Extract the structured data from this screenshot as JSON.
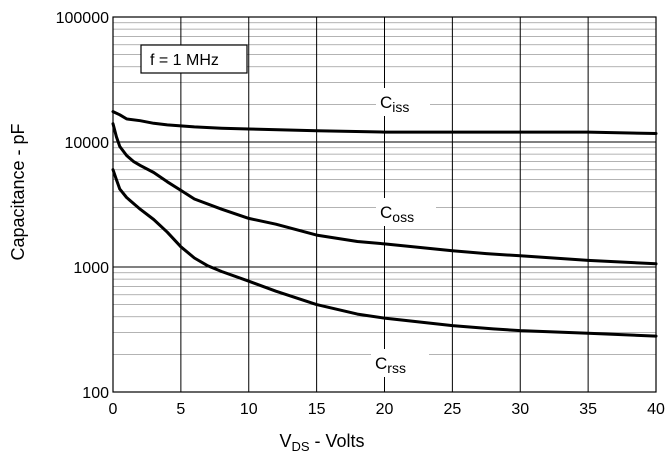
{
  "chart_data": {
    "type": "line",
    "xlabel": {
      "main": "V",
      "sub": "DS",
      "rest": " - Volts"
    },
    "ylabel": "Capacitance - pF",
    "xlim": [
      0,
      40
    ],
    "ylim": [
      100,
      100000
    ],
    "y_scale": "log",
    "grid": true,
    "x_ticks": [
      0,
      5,
      10,
      15,
      20,
      25,
      30,
      35,
      40
    ],
    "x_tick_labels": [
      "0",
      "5",
      "10",
      "15",
      "20",
      "25",
      "30",
      "35",
      "40"
    ],
    "y_ticks": [
      100,
      1000,
      10000,
      100000
    ],
    "y_tick_labels": [
      "100",
      "1000",
      "10000",
      "100000"
    ],
    "annotation": "f = 1 MHz",
    "series": [
      {
        "name": "Ciss",
        "label_main": "C",
        "label_sub": "iss",
        "x": [
          0,
          0.5,
          1,
          2,
          3,
          4,
          6,
          8,
          10,
          15,
          20,
          25,
          30,
          35,
          40
        ],
        "y": [
          17500,
          16500,
          15300,
          14800,
          14100,
          13700,
          13200,
          12900,
          12700,
          12300,
          12000,
          12000,
          12000,
          12000,
          11700
        ]
      },
      {
        "name": "Coss",
        "label_main": "C",
        "label_sub": "oss",
        "x": [
          0,
          0.25,
          0.5,
          1,
          1.5,
          2,
          3,
          4,
          5,
          6,
          8,
          10,
          12,
          15,
          18,
          20,
          25,
          27.5,
          30,
          35,
          40
        ],
        "y": [
          14000,
          11000,
          9200,
          7800,
          7000,
          6500,
          5700,
          4800,
          4100,
          3500,
          2900,
          2450,
          2200,
          1800,
          1600,
          1530,
          1350,
          1280,
          1230,
          1130,
          1060
        ]
      },
      {
        "name": "Crss",
        "label_main": "C",
        "label_sub": "rss",
        "x": [
          0,
          0.25,
          0.5,
          1,
          2,
          3,
          4,
          5,
          6,
          7,
          8,
          10,
          12,
          15,
          18,
          20,
          25,
          28,
          30,
          35,
          40
        ],
        "y": [
          6000,
          5000,
          4200,
          3600,
          2900,
          2400,
          1900,
          1450,
          1180,
          1020,
          920,
          770,
          640,
          500,
          420,
          390,
          340,
          320,
          310,
          295,
          280
        ]
      }
    ]
  }
}
